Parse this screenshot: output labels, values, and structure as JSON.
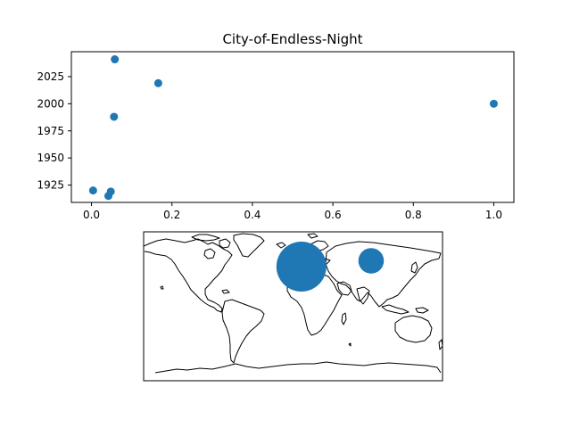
{
  "chart_data": [
    {
      "type": "scatter",
      "title": "City-of-Endless-Night",
      "xlabel": "",
      "ylabel": "",
      "xlim": [
        -0.05,
        1.05
      ],
      "ylim": [
        1909,
        2048
      ],
      "xticks": [
        0.0,
        0.2,
        0.4,
        0.6,
        0.8,
        1.0
      ],
      "xtick_labels": [
        "0.0",
        "0.2",
        "0.4",
        "0.6",
        "0.8",
        "1.0"
      ],
      "yticks": [
        1925,
        1950,
        1975,
        2000,
        2025
      ],
      "ytick_labels": [
        "1925",
        "1950",
        "1975",
        "2000",
        "2025"
      ],
      "grid": false,
      "color": "#1f77b4",
      "points": [
        {
          "x": 0.058,
          "y": 2041
        },
        {
          "x": 0.166,
          "y": 2019
        },
        {
          "x": 0.056,
          "y": 1988
        },
        {
          "x": 1.0,
          "y": 2000
        },
        {
          "x": 0.004,
          "y": 1920
        },
        {
          "x": 0.048,
          "y": 1919
        },
        {
          "x": 0.042,
          "y": 1915
        }
      ]
    },
    {
      "type": "map-bubble",
      "title": "",
      "projection": "plate-carree",
      "lon_range": [
        -180,
        180
      ],
      "lat_range": [
        -90,
        90
      ],
      "color": "#1f77b4",
      "bubbles": [
        {
          "lon": 10,
          "lat": 48,
          "relative_size": 1.0
        },
        {
          "lon": 94,
          "lat": 55,
          "relative_size": 0.26
        }
      ]
    }
  ]
}
